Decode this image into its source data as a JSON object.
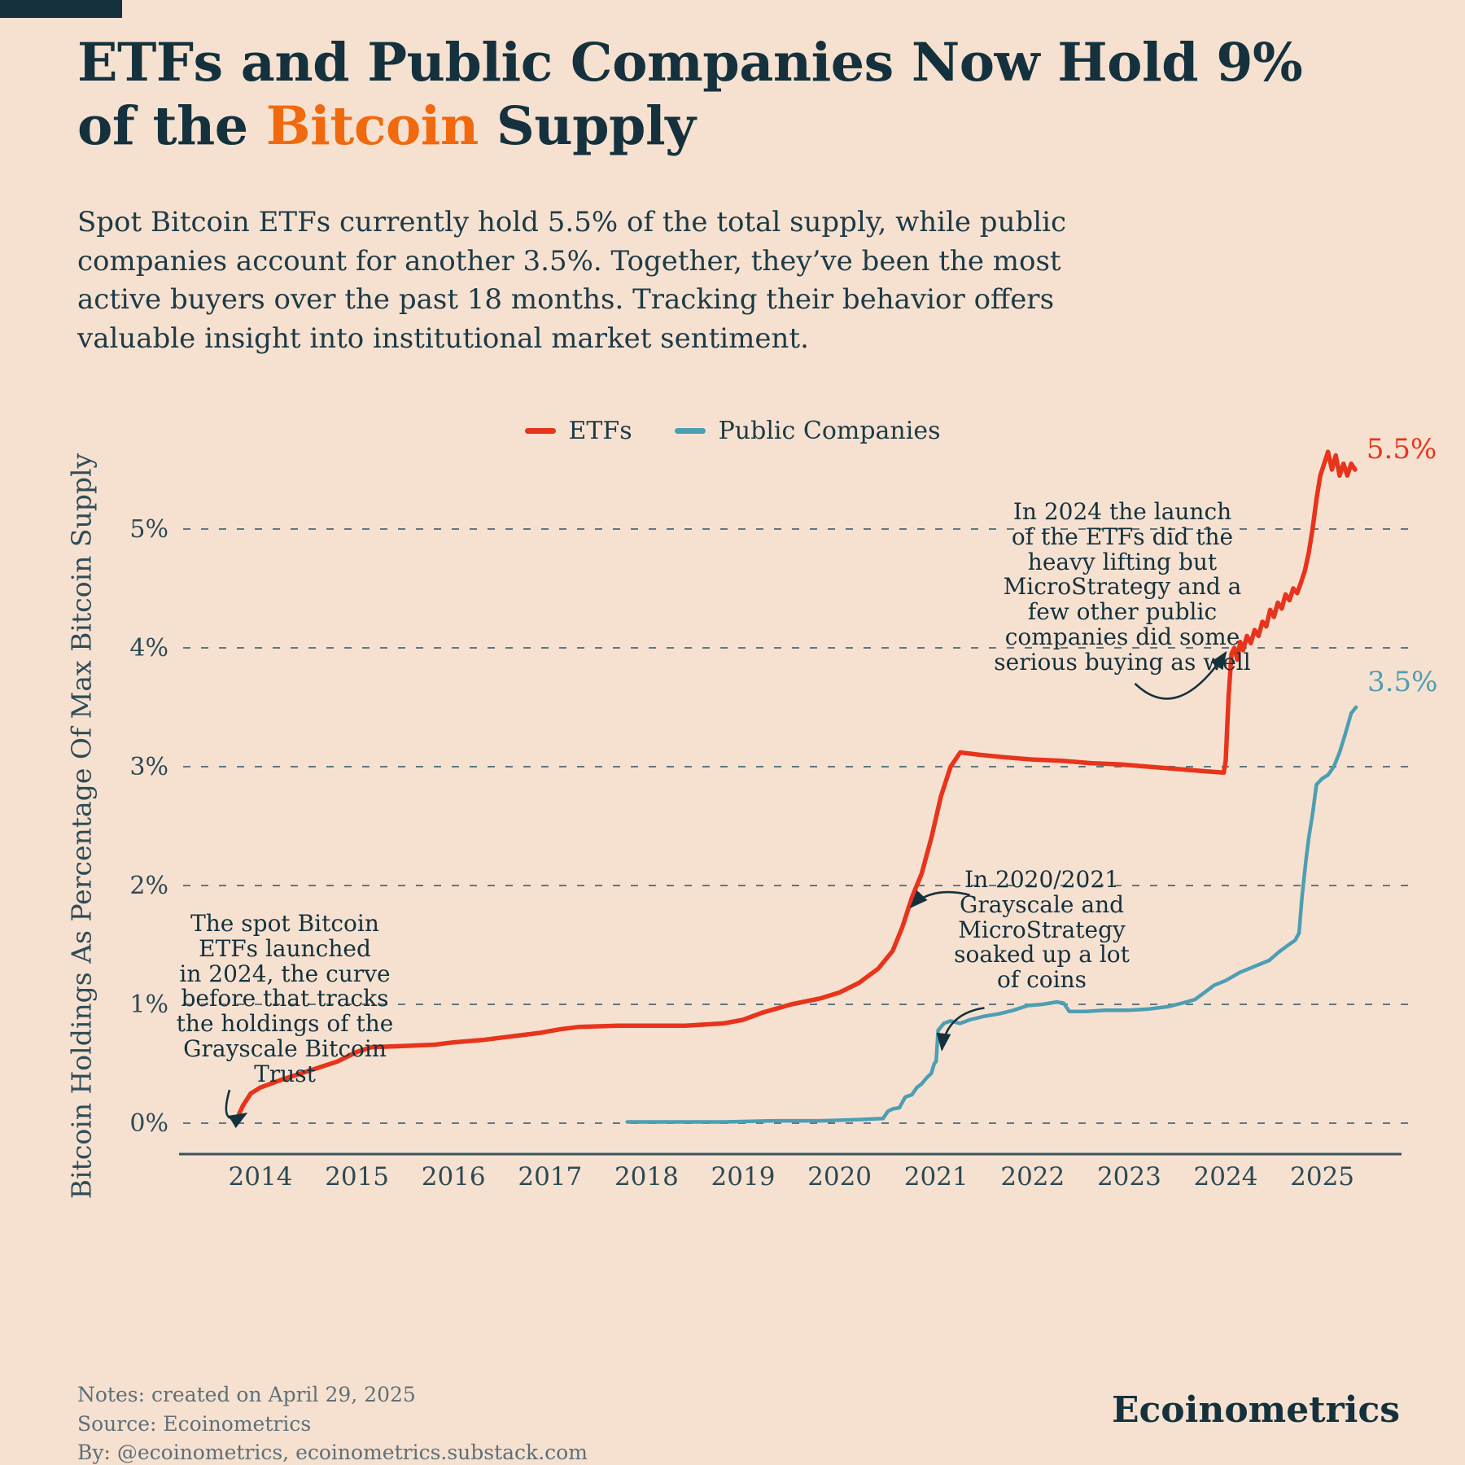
{
  "header": {
    "title_line1": "ETFs and Public Companies Now Hold 9%",
    "title_line2_pre": "of the ",
    "title_line2_accent": "Bitcoin",
    "title_line2_post": " Supply",
    "subtitle": "Spot Bitcoin ETFs currently hold 5.5% of the total supply, while public companies account for another 3.5%. Together, they’ve been the most active buyers over the past 18 months. Tracking their behavior offers valuable insight into institutional market sentiment."
  },
  "colors": {
    "background": "#f6e1d0",
    "ink": "#14313d",
    "accent_orange": "#f0690f",
    "etfs_red": "#e8341c",
    "public_companies_teal": "#4d9eb3",
    "grid": "#5d7884",
    "muted_text": "#5e6f78"
  },
  "chart_data": {
    "type": "line",
    "title": "",
    "xlabel": "",
    "ylabel": "Bitcoin Holdings As Percentage Of Max Bitcoin Supply",
    "xlim": [
      2013.4,
      2025.9
    ],
    "ylim": [
      0,
      5.9
    ],
    "grid": "horizontal dashed",
    "legend_position": "top-center",
    "x_ticks": [
      "2014",
      "2015",
      "2016",
      "2017",
      "2018",
      "2019",
      "2020",
      "2021",
      "2022",
      "2023",
      "2024",
      "2025"
    ],
    "y_ticks": [
      0,
      1,
      2,
      3,
      4,
      5
    ],
    "y_tick_labels": [
      "0%",
      "1%",
      "2%",
      "3%",
      "4%",
      "5%"
    ],
    "series": [
      {
        "name": "ETFs",
        "color": "#e8341c",
        "end_label": "5.5%",
        "points": [
          [
            2013.78,
            0.08
          ],
          [
            2013.82,
            0.15
          ],
          [
            2013.9,
            0.25
          ],
          [
            2014.0,
            0.3
          ],
          [
            2014.2,
            0.36
          ],
          [
            2014.5,
            0.44
          ],
          [
            2014.8,
            0.52
          ],
          [
            2015.0,
            0.6
          ],
          [
            2015.15,
            0.64
          ],
          [
            2015.5,
            0.65
          ],
          [
            2015.8,
            0.66
          ],
          [
            2016.0,
            0.68
          ],
          [
            2016.3,
            0.7
          ],
          [
            2016.6,
            0.73
          ],
          [
            2016.9,
            0.76
          ],
          [
            2017.1,
            0.79
          ],
          [
            2017.3,
            0.81
          ],
          [
            2017.7,
            0.82
          ],
          [
            2018.0,
            0.82
          ],
          [
            2018.4,
            0.82
          ],
          [
            2018.8,
            0.84
          ],
          [
            2019.0,
            0.87
          ],
          [
            2019.2,
            0.93
          ],
          [
            2019.5,
            1.0
          ],
          [
            2019.8,
            1.05
          ],
          [
            2020.0,
            1.1
          ],
          [
            2020.2,
            1.18
          ],
          [
            2020.4,
            1.3
          ],
          [
            2020.55,
            1.45
          ],
          [
            2020.65,
            1.65
          ],
          [
            2020.75,
            1.9
          ],
          [
            2020.85,
            2.1
          ],
          [
            2020.95,
            2.4
          ],
          [
            2021.05,
            2.75
          ],
          [
            2021.15,
            3.0
          ],
          [
            2021.25,
            3.12
          ],
          [
            2021.45,
            3.1
          ],
          [
            2021.7,
            3.08
          ],
          [
            2022.0,
            3.06
          ],
          [
            2022.3,
            3.05
          ],
          [
            2022.6,
            3.03
          ],
          [
            2022.9,
            3.02
          ],
          [
            2023.2,
            3.0
          ],
          [
            2023.5,
            2.98
          ],
          [
            2023.8,
            2.96
          ],
          [
            2023.98,
            2.95
          ],
          [
            2024.0,
            3.05
          ],
          [
            2024.03,
            3.6
          ],
          [
            2024.06,
            3.95
          ],
          [
            2024.09,
            4.0
          ],
          [
            2024.12,
            3.9
          ],
          [
            2024.15,
            4.05
          ],
          [
            2024.18,
            3.98
          ],
          [
            2024.22,
            4.1
          ],
          [
            2024.26,
            4.04
          ],
          [
            2024.3,
            4.15
          ],
          [
            2024.34,
            4.1
          ],
          [
            2024.38,
            4.22
          ],
          [
            2024.42,
            4.18
          ],
          [
            2024.46,
            4.32
          ],
          [
            2024.5,
            4.26
          ],
          [
            2024.54,
            4.38
          ],
          [
            2024.58,
            4.33
          ],
          [
            2024.62,
            4.45
          ],
          [
            2024.66,
            4.4
          ],
          [
            2024.7,
            4.5
          ],
          [
            2024.74,
            4.46
          ],
          [
            2024.78,
            4.55
          ],
          [
            2024.82,
            4.65
          ],
          [
            2024.86,
            4.8
          ],
          [
            2024.9,
            5.0
          ],
          [
            2024.94,
            5.25
          ],
          [
            2024.98,
            5.45
          ],
          [
            2025.02,
            5.55
          ],
          [
            2025.06,
            5.65
          ],
          [
            2025.1,
            5.5
          ],
          [
            2025.14,
            5.62
          ],
          [
            2025.18,
            5.45
          ],
          [
            2025.22,
            5.55
          ],
          [
            2025.26,
            5.45
          ],
          [
            2025.3,
            5.55
          ],
          [
            2025.34,
            5.5
          ]
        ]
      },
      {
        "name": "Public Companies",
        "color": "#4d9eb3",
        "end_label": "3.5%",
        "points": [
          [
            2017.8,
            0.01
          ],
          [
            2018.3,
            0.01
          ],
          [
            2018.8,
            0.01
          ],
          [
            2019.3,
            0.02
          ],
          [
            2019.8,
            0.02
          ],
          [
            2020.2,
            0.03
          ],
          [
            2020.45,
            0.04
          ],
          [
            2020.5,
            0.1
          ],
          [
            2020.55,
            0.12
          ],
          [
            2020.62,
            0.13
          ],
          [
            2020.68,
            0.22
          ],
          [
            2020.75,
            0.24
          ],
          [
            2020.8,
            0.3
          ],
          [
            2020.85,
            0.33
          ],
          [
            2020.9,
            0.38
          ],
          [
            2020.95,
            0.42
          ],
          [
            2020.98,
            0.5
          ],
          [
            2021.0,
            0.52
          ],
          [
            2021.02,
            0.78
          ],
          [
            2021.08,
            0.84
          ],
          [
            2021.15,
            0.86
          ],
          [
            2021.25,
            0.84
          ],
          [
            2021.35,
            0.87
          ],
          [
            2021.5,
            0.9
          ],
          [
            2021.65,
            0.92
          ],
          [
            2021.8,
            0.95
          ],
          [
            2021.95,
            0.99
          ],
          [
            2022.1,
            1.0
          ],
          [
            2022.25,
            1.02
          ],
          [
            2022.32,
            1.01
          ],
          [
            2022.38,
            0.94
          ],
          [
            2022.55,
            0.94
          ],
          [
            2022.75,
            0.95
          ],
          [
            2023.0,
            0.95
          ],
          [
            2023.2,
            0.96
          ],
          [
            2023.4,
            0.98
          ],
          [
            2023.55,
            1.01
          ],
          [
            2023.68,
            1.04
          ],
          [
            2023.78,
            1.1
          ],
          [
            2023.88,
            1.16
          ],
          [
            2024.0,
            1.2
          ],
          [
            2024.15,
            1.27
          ],
          [
            2024.3,
            1.32
          ],
          [
            2024.45,
            1.37
          ],
          [
            2024.55,
            1.44
          ],
          [
            2024.65,
            1.5
          ],
          [
            2024.72,
            1.54
          ],
          [
            2024.76,
            1.6
          ],
          [
            2024.79,
            1.9
          ],
          [
            2024.83,
            2.2
          ],
          [
            2024.86,
            2.4
          ],
          [
            2024.9,
            2.6
          ],
          [
            2024.94,
            2.85
          ],
          [
            2025.0,
            2.9
          ],
          [
            2025.06,
            2.93
          ],
          [
            2025.12,
            3.0
          ],
          [
            2025.18,
            3.12
          ],
          [
            2025.24,
            3.28
          ],
          [
            2025.3,
            3.45
          ],
          [
            2025.35,
            3.5
          ]
        ]
      }
    ],
    "annotations": [
      {
        "id": "grayscale-trust",
        "text": "The spot Bitcoin\nETFs launched\nin 2024, the curve\nbefore that tracks\nthe holdings of the\nGrayscale Bitcoin\nTrust",
        "arrows": [
          {
            "from": [
              2013.68,
              0.28
            ],
            "ctrl": [
              2013.56,
              -0.06
            ],
            "to": [
              2013.85,
              0.08
            ]
          }
        ]
      },
      {
        "id": "grayscale-microstrategy-2020-2021",
        "text": "In 2020/2021\nGrayscale and\nMicroStrategy\nsoaked up a lot\nof coins",
        "arrows": [
          {
            "from": [
              2021.35,
              1.92
            ],
            "ctrl": [
              2020.95,
              2.0
            ],
            "to": [
              2020.74,
              1.82
            ]
          },
          {
            "from": [
              2021.5,
              0.97
            ],
            "ctrl": [
              2021.1,
              0.92
            ],
            "to": [
              2021.06,
              0.62
            ]
          }
        ]
      },
      {
        "id": "etf-launch-2024",
        "text": "In 2024 the launch\nof the ETFs did the\nheavy lifting but\nMicroStrategy and a\nfew other public\ncompanies did some\nserious buying as well",
        "arrows": [
          {
            "from": [
              2023.06,
              3.7
            ],
            "ctrl": [
              2023.5,
              3.35
            ],
            "to": [
              2024.0,
              3.96
            ]
          }
        ]
      }
    ]
  },
  "footer": {
    "notes": "Notes: created on April 29, 2025\nSource: Ecoinometrics\nBy: @ecoinometrics, ecoinometrics.substack.com",
    "brand": "Ecoinometrics"
  }
}
